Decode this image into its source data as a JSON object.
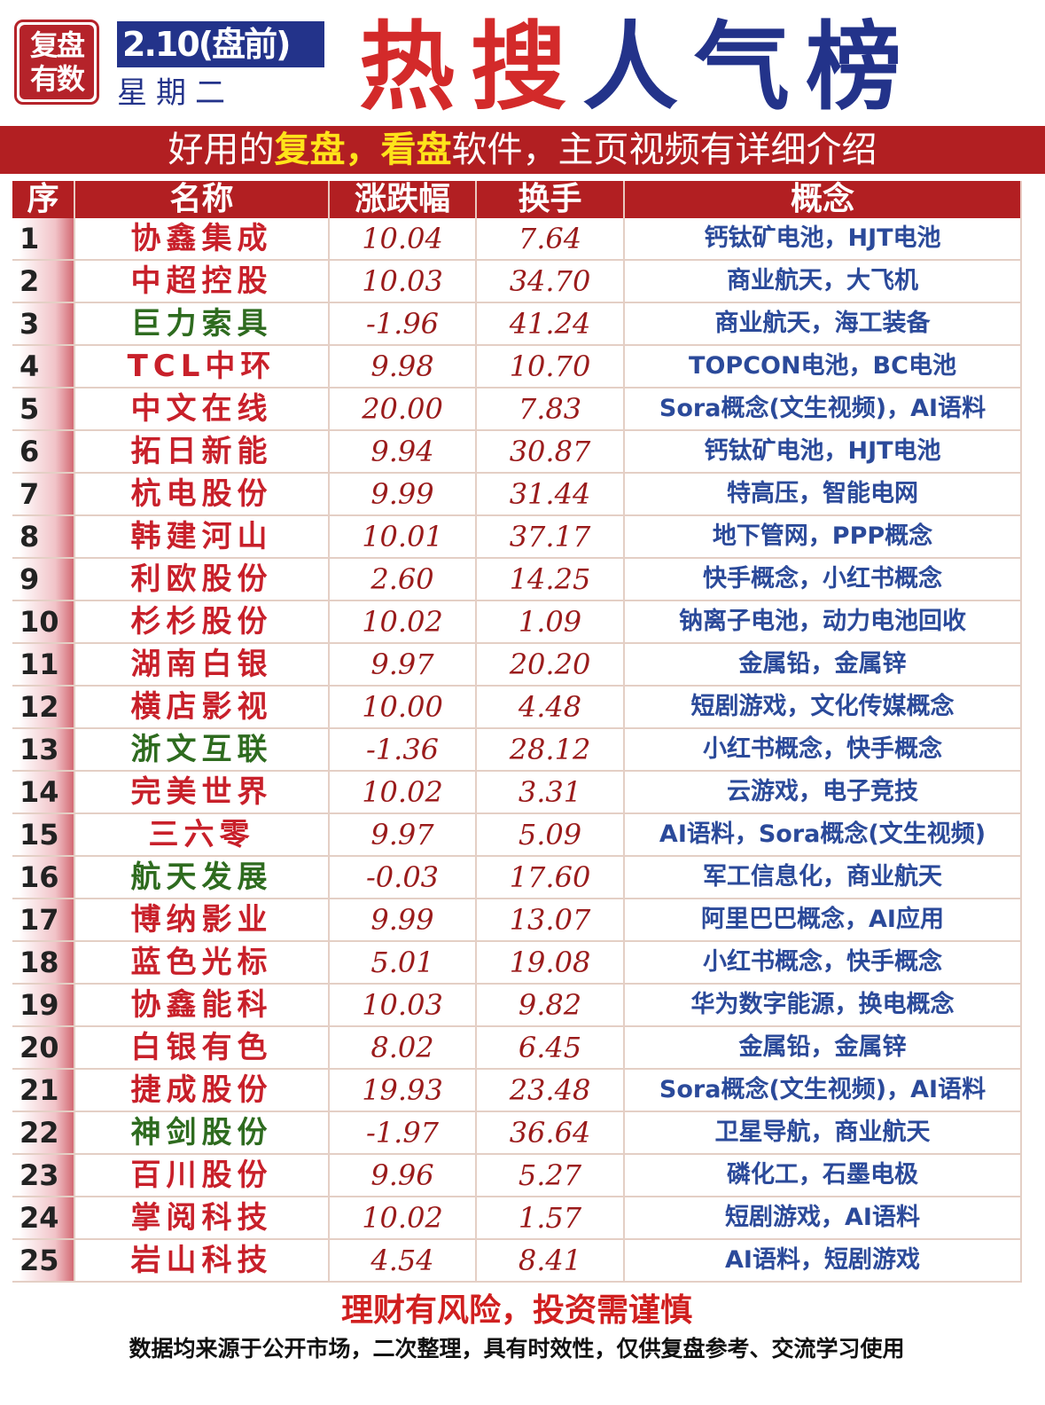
{
  "header": {
    "stamp": "复盘有数",
    "date": "2.10(盘前)",
    "weekday": "星期二",
    "title_red": "热搜",
    "title_blue": "人气榜"
  },
  "banner": {
    "part1": "好用的",
    "hl1": "复盘",
    "sep": "，",
    "hl2": "看盘",
    "part2": "软件，主页视频有详细介绍"
  },
  "colors": {
    "red": "#b21f22",
    "blue": "#23338a",
    "positive": "#c8202a",
    "negative": "#2e6b1f",
    "concept": "#2b4a9a"
  },
  "table": {
    "columns": [
      "序",
      "名称",
      "涨跌幅",
      "换手",
      "概念"
    ],
    "rows": [
      {
        "no": "1",
        "name": "协鑫集成",
        "change": "10.04",
        "turnover": "7.64",
        "concept": "钙钛矿电池，HJT电池"
      },
      {
        "no": "2",
        "name": "中超控股",
        "change": "10.03",
        "turnover": "34.70",
        "concept": "商业航天，大飞机"
      },
      {
        "no": "3",
        "name": "巨力索具",
        "change": "-1.96",
        "turnover": "41.24",
        "concept": "商业航天，海工装备"
      },
      {
        "no": "4",
        "name": "TCL中环",
        "change": "9.98",
        "turnover": "10.70",
        "concept": "TOPCON电池，BC电池"
      },
      {
        "no": "5",
        "name": "中文在线",
        "change": "20.00",
        "turnover": "7.83",
        "concept": "Sora概念(文生视频)，AI语料"
      },
      {
        "no": "6",
        "name": "拓日新能",
        "change": "9.94",
        "turnover": "30.87",
        "concept": "钙钛矿电池，HJT电池"
      },
      {
        "no": "7",
        "name": "杭电股份",
        "change": "9.99",
        "turnover": "31.44",
        "concept": "特高压，智能电网"
      },
      {
        "no": "8",
        "name": "韩建河山",
        "change": "10.01",
        "turnover": "37.17",
        "concept": "地下管网，PPP概念"
      },
      {
        "no": "9",
        "name": "利欧股份",
        "change": "2.60",
        "turnover": "14.25",
        "concept": "快手概念，小红书概念"
      },
      {
        "no": "10",
        "name": "杉杉股份",
        "change": "10.02",
        "turnover": "1.09",
        "concept": "钠离子电池，动力电池回收"
      },
      {
        "no": "11",
        "name": "湖南白银",
        "change": "9.97",
        "turnover": "20.20",
        "concept": "金属铅，金属锌"
      },
      {
        "no": "12",
        "name": "横店影视",
        "change": "10.00",
        "turnover": "4.48",
        "concept": "短剧游戏，文化传媒概念"
      },
      {
        "no": "13",
        "name": "浙文互联",
        "change": "-1.36",
        "turnover": "28.12",
        "concept": "小红书概念，快手概念"
      },
      {
        "no": "14",
        "name": "完美世界",
        "change": "10.02",
        "turnover": "3.31",
        "concept": "云游戏，电子竞技"
      },
      {
        "no": "15",
        "name": "三六零",
        "change": "9.97",
        "turnover": "5.09",
        "concept": "AI语料，Sora概念(文生视频)"
      },
      {
        "no": "16",
        "name": "航天发展",
        "change": "-0.03",
        "turnover": "17.60",
        "concept": "军工信息化，商业航天"
      },
      {
        "no": "17",
        "name": "博纳影业",
        "change": "9.99",
        "turnover": "13.07",
        "concept": "阿里巴巴概念，AI应用"
      },
      {
        "no": "18",
        "name": "蓝色光标",
        "change": "5.01",
        "turnover": "19.08",
        "concept": "小红书概念，快手概念"
      },
      {
        "no": "19",
        "name": "协鑫能科",
        "change": "10.03",
        "turnover": "9.82",
        "concept": "华为数字能源，换电概念"
      },
      {
        "no": "20",
        "name": "白银有色",
        "change": "8.02",
        "turnover": "6.45",
        "concept": "金属铅，金属锌"
      },
      {
        "no": "21",
        "name": "捷成股份",
        "change": "19.93",
        "turnover": "23.48",
        "concept": "Sora概念(文生视频)，AI语料"
      },
      {
        "no": "22",
        "name": "神剑股份",
        "change": "-1.97",
        "turnover": "36.64",
        "concept": "卫星导航，商业航天"
      },
      {
        "no": "23",
        "name": "百川股份",
        "change": "9.96",
        "turnover": "5.27",
        "concept": "磷化工，石墨电极"
      },
      {
        "no": "24",
        "name": "掌阅科技",
        "change": "10.02",
        "turnover": "1.57",
        "concept": "短剧游戏，AI语料"
      },
      {
        "no": "25",
        "name": "岩山科技",
        "change": "4.54",
        "turnover": "8.41",
        "concept": "AI语料，短剧游戏"
      }
    ]
  },
  "footer": {
    "warning": "理财有风险，投资需谨慎",
    "source": "数据均来源于公开市场，二次整理，具有时效性，仅供复盘参考、交流学习使用"
  }
}
